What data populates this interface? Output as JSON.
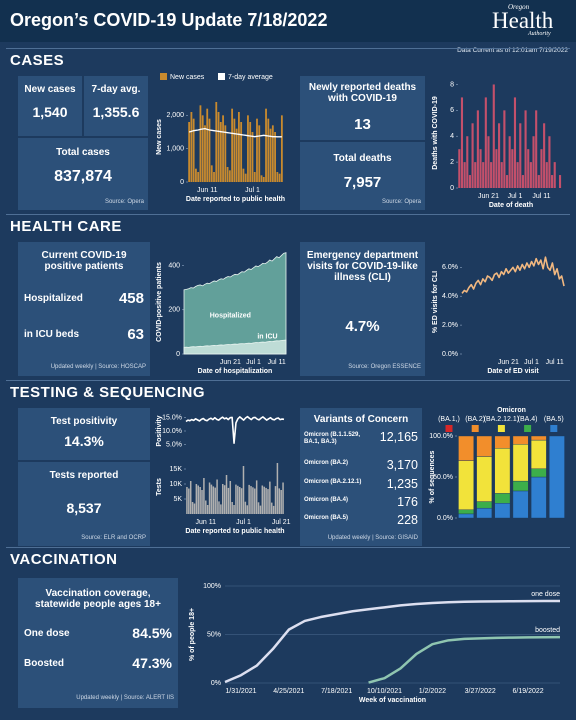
{
  "header": {
    "title": "Oregon’s COVID-19 Update 7/18/2022",
    "logo_top": "Oregon",
    "logo_main": "Health",
    "logo_bottom": "Authority",
    "data_current": "Data Current as of 12:01am 7/19/2022"
  },
  "sections": {
    "cases": "CASES",
    "health_care": "HEALTH CARE",
    "testing": "TESTING & SEQUENCING",
    "vaccination": "VACCINATION"
  },
  "cases": {
    "new_cases": {
      "label": "New cases",
      "value": "1,540"
    },
    "avg": {
      "label": "7-day avg.",
      "value": "1,355.6"
    },
    "total": {
      "label": "Total cases",
      "value": "837,874"
    },
    "source": "Source: Opera",
    "deaths_new": {
      "label": "Newly reported deaths with COVID-19",
      "value": "13"
    },
    "deaths_total": {
      "label": "Total deaths",
      "value": "7,957"
    },
    "deaths_source": "Source: Opera"
  },
  "health_care": {
    "patients_title": "Current COVID-19 positive patients",
    "hospitalized": {
      "label": "Hospitalized",
      "value": "458"
    },
    "icu": {
      "label": "in ICU beds",
      "value": "63"
    },
    "patients_source": "Updated weekly | Source: HOSCAP",
    "ed_title": "Emergency department visits for COVID-19-like illness (CLI)",
    "ed_value": "4.7%",
    "ed_source": "Source: Oregon ESSENCE"
  },
  "testing": {
    "positivity": {
      "label": "Test positivity",
      "value": "14.3%"
    },
    "tests": {
      "label": "Tests reported",
      "value": "8,537"
    },
    "source": "Source: ELR and OCRP",
    "variants_title": "Variants of Concern",
    "variants": [
      {
        "name": "Omicron (B.1.1.529, BA.1, BA.3)",
        "value": "12,165"
      },
      {
        "name": "Omicron (BA.2)",
        "value": "3,170"
      },
      {
        "name": "Omicron (BA.2.12.1)",
        "value": "1,235"
      },
      {
        "name": "Omicron (BA.4)",
        "value": "176"
      },
      {
        "name": "Omicron (BA.5)",
        "value": "228"
      }
    ],
    "variants_source": "Updated weekly | Source: GISAID"
  },
  "vaccination": {
    "title": "Vaccination coverage, statewide people ages 18+",
    "one_dose": {
      "label": "One dose",
      "value": "84.5%"
    },
    "boosted": {
      "label": "Boosted",
      "value": "47.3%"
    },
    "source": "Updated weekly | Source: ALERT IIS"
  },
  "chart_data": [
    {
      "type": "bar",
      "legend": "top",
      "grid": false,
      "y_label": "New cases",
      "x_label": "Date reported to public health",
      "ylim": [
        0,
        2700
      ],
      "yticks": [
        0,
        {
          "value": 1000,
          "label": "1,000"
        },
        {
          "value": 2000,
          "label": "2,000"
        }
      ],
      "categories": [
        null,
        null,
        null,
        null,
        null,
        null,
        null,
        null,
        "Jun 11",
        null,
        null,
        null,
        null,
        null,
        null,
        null,
        null,
        null,
        null,
        null,
        null,
        null,
        null,
        null,
        null,
        null,
        null,
        null,
        "Jul 1",
        null,
        null,
        null,
        null,
        null,
        null,
        null,
        null,
        null,
        null,
        null,
        null,
        null
      ],
      "series": [
        {
          "name": "New cases",
          "color": "#c88a2e",
          "values": [
            1800,
            2100,
            1900,
            400,
            300,
            2300,
            2000,
            1700,
            2200,
            1900,
            500,
            300,
            2400,
            2100,
            1800,
            2000,
            1700,
            450,
            350,
            2200,
            1900,
            1600,
            2100,
            1800,
            400,
            250,
            2000,
            1800,
            1500,
            300,
            1900,
            1700,
            200,
            150,
            2200,
            1900,
            1600,
            1700,
            1500,
            300,
            250,
            2000
          ]
        },
        {
          "name": "7-day average",
          "color": "#ffffff",
          "type": "line",
          "values": [
            1500,
            1520,
            1540,
            1550,
            1560,
            1580,
            1590,
            1600,
            1580,
            1560,
            1550,
            1540,
            1530,
            1520,
            1510,
            1500,
            1490,
            1480,
            1470,
            1460,
            1450,
            1440,
            1430,
            1420,
            1410,
            1400,
            1390,
            1380,
            1370,
            1360,
            1370,
            1380,
            1390,
            1400,
            1390,
            1380,
            1370,
            1360,
            1360,
            1355,
            1356,
            1355.6
          ]
        }
      ]
    },
    {
      "type": "bar",
      "grid": false,
      "color": "#c4506b",
      "y_label": "Deaths with COVID-19",
      "x_label": "Date of death",
      "ylim": [
        0,
        8.5
      ],
      "yticks": [
        0,
        2,
        4,
        6,
        8
      ],
      "categories": [
        null,
        null,
        null,
        null,
        null,
        null,
        null,
        null,
        null,
        null,
        null,
        "Jun 21",
        null,
        null,
        null,
        null,
        null,
        null,
        null,
        null,
        null,
        "Jul 1",
        null,
        null,
        null,
        null,
        null,
        null,
        null,
        null,
        null,
        "Jul 11",
        null,
        null,
        null,
        null,
        null,
        null,
        null,
        null
      ],
      "values": [
        3,
        7,
        2,
        4,
        1,
        5,
        2,
        6,
        3,
        2,
        7,
        4,
        2,
        8,
        3,
        5,
        2,
        6,
        1,
        4,
        3,
        7,
        2,
        5,
        1,
        6,
        3,
        2,
        4,
        6,
        1,
        3,
        5,
        2,
        4,
        1,
        2,
        0,
        1,
        0
      ]
    },
    {
      "type": "area",
      "legend": "inside",
      "grid": false,
      "y_label": "COVID-positive patients",
      "x_label": "Date of hospitalization",
      "ylim": [
        0,
        470
      ],
      "yticks": [
        0,
        200,
        400
      ],
      "categories": [
        null,
        null,
        null,
        null,
        null,
        null,
        null,
        null,
        null,
        null,
        null,
        null,
        null,
        null,
        null,
        null,
        null,
        null,
        null,
        null,
        "Jun 21",
        null,
        null,
        null,
        null,
        null,
        null,
        null,
        null,
        null,
        "Jul 1",
        null,
        null,
        null,
        null,
        null,
        null,
        null,
        null,
        null,
        "Jul 11",
        null,
        null,
        null,
        null
      ],
      "series": [
        {
          "name": "Hospitalized",
          "color": "#6fb3a5",
          "values": [
            290,
            292,
            295,
            300,
            298,
            305,
            310,
            312,
            308,
            315,
            320,
            318,
            325,
            330,
            328,
            335,
            340,
            338,
            345,
            350,
            348,
            355,
            360,
            358,
            365,
            372,
            370,
            378,
            385,
            382,
            390,
            398,
            395,
            402,
            410,
            408,
            415,
            425,
            420,
            430,
            440,
            435,
            445,
            455,
            458
          ]
        },
        {
          "name": "in ICU",
          "color": "#cfe6e0",
          "values": [
            30,
            31,
            30,
            32,
            33,
            32,
            34,
            35,
            34,
            36,
            37,
            36,
            38,
            39,
            38,
            40,
            41,
            40,
            42,
            43,
            42,
            44,
            45,
            44,
            46,
            47,
            46,
            48,
            49,
            48,
            50,
            52,
            51,
            53,
            54,
            53,
            55,
            57,
            56,
            58,
            60,
            59,
            61,
            62,
            63
          ]
        }
      ]
    },
    {
      "type": "line",
      "grid": false,
      "color": "#f2b880",
      "y_label": "% ED visits for CLI",
      "x_label": "Date of ED visit",
      "ylim": [
        0,
        7.2
      ],
      "yticks": [
        {
          "value": 0,
          "label": "0.0%"
        },
        {
          "value": 2,
          "label": "2.0%"
        },
        {
          "value": 4,
          "label": "4.0%"
        },
        {
          "value": 6,
          "label": "6.0%"
        }
      ],
      "categories": [
        null,
        null,
        null,
        null,
        null,
        null,
        null,
        null,
        null,
        null,
        null,
        null,
        null,
        null,
        null,
        null,
        null,
        null,
        null,
        null,
        "Jun 21",
        null,
        null,
        null,
        null,
        null,
        null,
        null,
        null,
        null,
        "Jul 1",
        null,
        null,
        null,
        null,
        null,
        null,
        null,
        null,
        null,
        "Jul 11",
        null,
        null,
        null,
        null
      ],
      "values": [
        4.2,
        4.4,
        4.3,
        4.6,
        4.8,
        4.5,
        4.9,
        5.1,
        4.8,
        5.2,
        5.0,
        5.4,
        5.3,
        5.1,
        5.5,
        5.6,
        5.3,
        5.7,
        5.5,
        5.9,
        5.6,
        5.8,
        6.0,
        5.7,
        6.1,
        5.8,
        6.2,
        5.9,
        6.3,
        6.0,
        6.4,
        6.1,
        6.6,
        6.2,
        6.5,
        5.9,
        6.7,
        6.0,
        5.8,
        6.3,
        5.5,
        5.9,
        5.2,
        5.4,
        4.7
      ]
    },
    {
      "type": "line",
      "grid": false,
      "color": "#ffffff",
      "y_label": "Positivity",
      "ylim": [
        3,
        17
      ],
      "yticks": [
        {
          "value": 5,
          "label": "5.0%"
        },
        {
          "value": 10,
          "label": "10.0%"
        },
        {
          "value": 15,
          "label": "15.0%"
        }
      ],
      "categories": [
        null,
        null,
        null,
        null,
        null,
        null,
        null,
        null,
        null,
        null,
        null,
        null,
        null,
        null,
        null,
        null,
        null,
        null,
        null,
        null,
        null,
        null,
        null,
        null,
        null,
        null,
        null,
        null,
        null,
        null,
        null,
        null,
        null,
        null,
        null,
        null,
        null,
        null,
        null,
        null,
        null,
        null,
        null,
        null,
        null,
        null,
        null,
        null,
        null,
        null,
        null,
        null
      ],
      "values": [
        13.5,
        14.0,
        13.8,
        14.2,
        13.9,
        14.5,
        14.1,
        13.7,
        14.3,
        14.6,
        14.0,
        13.8,
        14.4,
        14.7,
        14.2,
        14.9,
        14.3,
        14.0,
        14.6,
        15.1,
        14.5,
        14.8,
        14.2,
        14.9,
        15.0,
        5.5,
        13.0,
        14.5,
        15.2,
        14.6,
        14.0,
        14.8,
        15.3,
        14.7,
        14.2,
        14.9,
        15.0,
        14.4,
        14.1,
        14.7,
        15.2,
        14.6,
        14.0,
        14.5,
        14.9,
        14.3,
        14.1,
        14.6,
        14.8,
        14.2,
        14.4,
        14.3
      ]
    },
    {
      "type": "bar",
      "grid": false,
      "color": "#b0b0b0",
      "y_label": "Tests",
      "x_label": "Date reported to public health",
      "ylim": [
        0,
        18000
      ],
      "yticks": [
        {
          "value": 5000,
          "label": "5K"
        },
        {
          "value": 10000,
          "label": "10K"
        },
        {
          "value": 15000,
          "label": "15K"
        }
      ],
      "categories": [
        null,
        null,
        null,
        null,
        null,
        null,
        null,
        null,
        null,
        null,
        "Jun 11",
        null,
        null,
        null,
        null,
        null,
        null,
        null,
        null,
        null,
        null,
        null,
        null,
        null,
        null,
        null,
        null,
        null,
        null,
        null,
        "Jul 1",
        null,
        null,
        null,
        null,
        null,
        null,
        null,
        null,
        null,
        null,
        null,
        null,
        null,
        null,
        null,
        null,
        null,
        null,
        null,
        "Jul 21",
        null
      ],
      "values": [
        9000,
        8500,
        11000,
        4000,
        3500,
        10000,
        9500,
        9000,
        8000,
        12000,
        4500,
        3000,
        10500,
        9800,
        9200,
        8800,
        11500,
        4200,
        3200,
        10000,
        9600,
        13000,
        8700,
        11000,
        4000,
        3000,
        9800,
        9400,
        9000,
        8600,
        16000,
        4100,
        2900,
        9700,
        9300,
        8900,
        8500,
        11200,
        3900,
        2800,
        9500,
        9100,
        8700,
        8300,
        10800,
        3800,
        2700,
        9300,
        17000,
        8537,
        8000,
        10500
      ]
    },
    {
      "type": "stacked_bar",
      "title": "Omicron",
      "legend": "top-stack",
      "grid": false,
      "y_label": "% of sequences",
      "ylim": [
        0,
        100
      ],
      "yticks": [
        {
          "value": 0,
          "label": "0.0%"
        },
        {
          "value": 50,
          "label": "50.0%"
        },
        {
          "value": 100,
          "label": "100.0%"
        }
      ],
      "categories": [
        null,
        null,
        null,
        null,
        null,
        null
      ],
      "series": [
        {
          "name": "(BA.1,)",
          "color": "#d62728",
          "values": [
            0,
            0,
            0,
            0,
            0,
            0
          ]
        },
        {
          "name": "(BA.2)",
          "color": "#f28e2b",
          "values": [
            30,
            25,
            15,
            10,
            5,
            0
          ]
        },
        {
          "name": "(BA.2.12.1)",
          "color": "#f2e33a",
          "values": [
            60,
            55,
            55,
            45,
            35,
            0
          ]
        },
        {
          "name": "(BA.4)",
          "color": "#3cae4a",
          "values": [
            5,
            8,
            12,
            12,
            10,
            0
          ]
        },
        {
          "name": "(BA.5)",
          "color": "#2f7fd0",
          "values": [
            5,
            12,
            18,
            33,
            50,
            100
          ]
        }
      ]
    },
    {
      "type": "line",
      "legend": "end",
      "grid": true,
      "y_label": "% of people 18+",
      "x_label": "Week of vaccination",
      "ylim": [
        0,
        100
      ],
      "yticks": [
        {
          "value": 0,
          "label": "0%"
        },
        {
          "value": 50,
          "label": "50%"
        },
        {
          "value": 100,
          "label": "100%"
        }
      ],
      "categories": [
        null,
        "1/31/2021",
        null,
        null,
        "4/25/2021",
        null,
        null,
        "7/18/2021",
        null,
        null,
        "10/10/2021",
        null,
        null,
        "1/2/2022",
        null,
        null,
        "3/27/2022",
        null,
        null,
        "6/19/2022",
        null,
        null
      ],
      "series": [
        {
          "name": "one dose",
          "color": "#dcdff0",
          "values": [
            1,
            8,
            18,
            35,
            55,
            64,
            68,
            71,
            74,
            76,
            78,
            80,
            81.5,
            82.5,
            83.2,
            83.7,
            84,
            84.2,
            84.3,
            84.4,
            84.5,
            84.5
          ]
        },
        {
          "name": "boosted",
          "color": "#8fc5b0",
          "values": [
            null,
            null,
            null,
            null,
            null,
            null,
            null,
            null,
            null,
            0.5,
            5,
            15,
            30,
            40,
            44,
            45.5,
            46,
            46.5,
            46.8,
            47,
            47.2,
            47.3
          ]
        }
      ]
    }
  ]
}
